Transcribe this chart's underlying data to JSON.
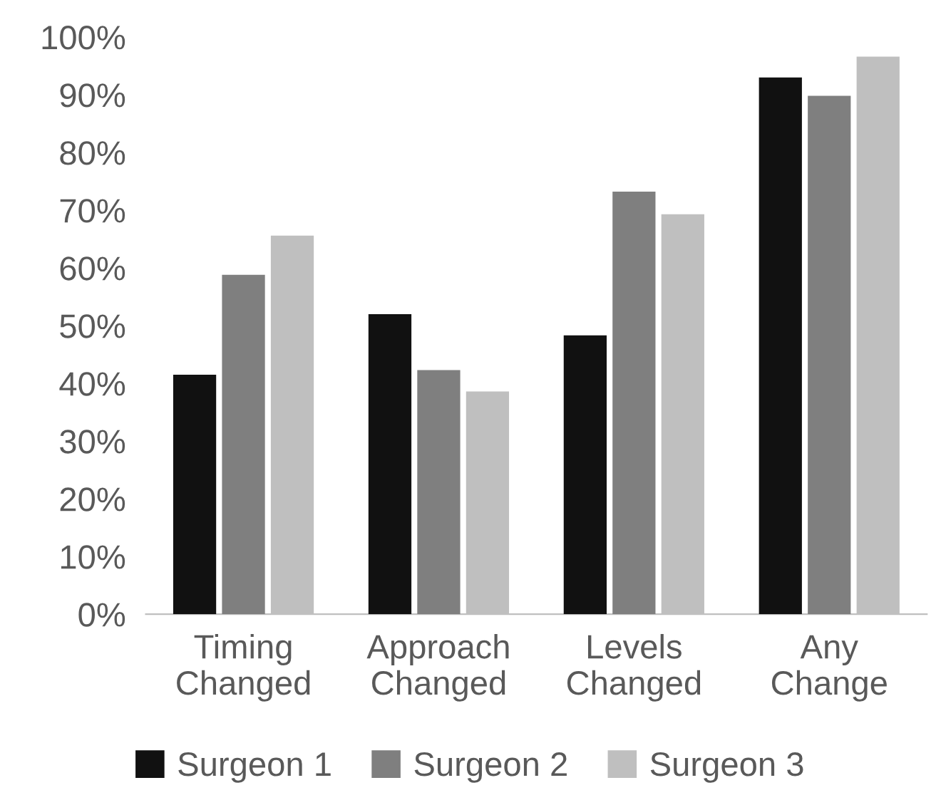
{
  "chart_data": {
    "type": "bar",
    "categories": [
      "Timing\nChanged",
      "Approach\nChanged",
      "Levels\nChanged",
      "Any\nChange"
    ],
    "series": [
      {
        "name": "Surgeon 1",
        "color": "#111111",
        "values": [
          41.5,
          52,
          48.3,
          93
        ]
      },
      {
        "name": "Surgeon 2",
        "color": "#7f7f7f",
        "values": [
          58.8,
          42.3,
          73.2,
          89.8
        ]
      },
      {
        "name": "Surgeon 3",
        "color": "#bfbfbf",
        "values": [
          65.6,
          38.6,
          69.3,
          96.6
        ]
      }
    ],
    "ylim": [
      0,
      100
    ],
    "yticks": [
      {
        "value": 0,
        "label": "0%"
      },
      {
        "value": 10,
        "label": "10%"
      },
      {
        "value": 20,
        "label": "20%"
      },
      {
        "value": 30,
        "label": "30%"
      },
      {
        "value": 40,
        "label": "40%"
      },
      {
        "value": 50,
        "label": "50%"
      },
      {
        "value": 60,
        "label": "60%"
      },
      {
        "value": 70,
        "label": "70%"
      },
      {
        "value": 80,
        "label": "80%"
      },
      {
        "value": 90,
        "label": "90%"
      },
      {
        "value": 100,
        "label": "100%"
      }
    ],
    "grid": false,
    "legend": "bottom"
  }
}
